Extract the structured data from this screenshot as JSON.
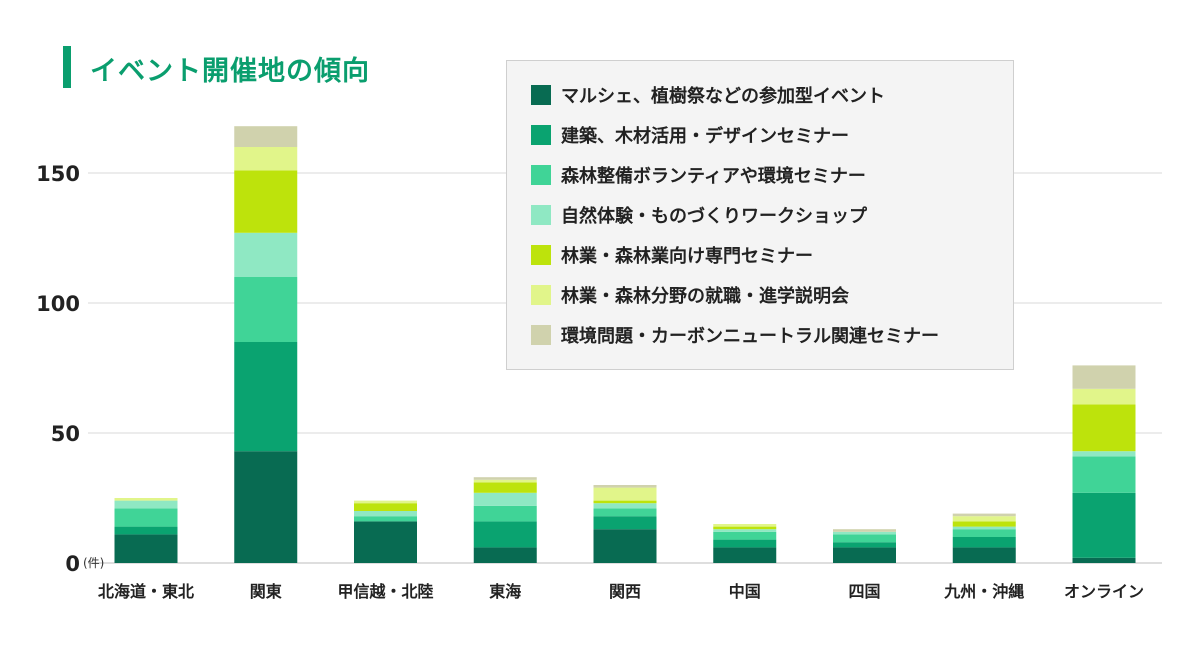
{
  "title": "イベント開催地の傾向",
  "y_unit_label": "(件)",
  "chart_data": {
    "type": "bar",
    "stacked": true,
    "categories": [
      "北海道・東北",
      "関東",
      "甲信越・北陸",
      "東海",
      "関西",
      "中国",
      "四国",
      "九州・沖縄",
      "オンライン"
    ],
    "ylim": [
      0,
      170
    ],
    "yticks": [
      0,
      50,
      100,
      150
    ],
    "grid": true,
    "legend_position": "top-right",
    "series": [
      {
        "name": "マルシェ、植樹祭などの参加型イベント",
        "color": "#086b52",
        "values": [
          11,
          43,
          16,
          6,
          13,
          6,
          6,
          6,
          2
        ]
      },
      {
        "name": "建築、木材活用・デザインセミナー",
        "color": "#0aa370",
        "values": [
          3,
          42,
          0,
          10,
          5,
          3,
          2,
          4,
          25
        ]
      },
      {
        "name": "森林整備ボランティアや環境セミナー",
        "color": "#40d497",
        "values": [
          7,
          25,
          2,
          6,
          3,
          3,
          3,
          3,
          14
        ]
      },
      {
        "name": "自然体験・ものづくりワークショップ",
        "color": "#8fe8c3",
        "values": [
          3,
          17,
          2,
          5,
          2,
          1,
          1,
          1,
          2
        ]
      },
      {
        "name": "林業・森林業向け専門セミナー",
        "color": "#bde30c",
        "values": [
          0,
          24,
          3,
          4,
          1,
          1,
          0,
          2,
          18
        ]
      },
      {
        "name": "林業・森林分野の就職・進学説明会",
        "color": "#e1f58a",
        "values": [
          1,
          9,
          1,
          1,
          5,
          1,
          0,
          2,
          6
        ]
      },
      {
        "name": "環境問題・カーボンニュートラル関連セミナー",
        "color": "#d0d2ad",
        "values": [
          0,
          8,
          0,
          1,
          1,
          0,
          1,
          1,
          9
        ]
      }
    ]
  }
}
